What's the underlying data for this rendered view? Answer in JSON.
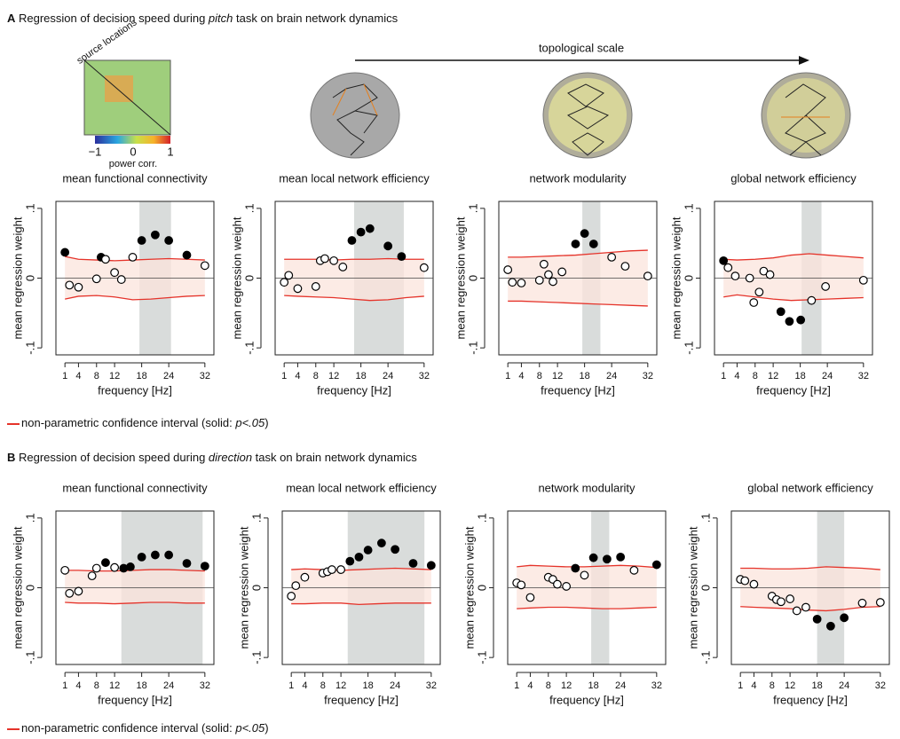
{
  "figure": {
    "panels": [
      {
        "letter": "A",
        "pre": " Regression of decision speed during ",
        "task": "pitch",
        "post": " task on brain network dynamics"
      },
      {
        "letter": "B",
        "pre": " Regression of decision speed during ",
        "task": "direction",
        "post": " task on brain network dynamics"
      }
    ],
    "legend": {
      "pre": "non-parametric confidence interval (solid: ",
      "italic": "p<.05",
      "post": ")"
    },
    "scale_label": "topological scale",
    "matrix_label": "source locations",
    "colorbar_ticks": [
      "−1",
      "0",
      "1"
    ],
    "colorbar_label": "power corr."
  },
  "chart_data": [
    {
      "type": "scatter",
      "title": "mean functional connectivity",
      "xlabel": "frequency [Hz]",
      "ylabel": "mean regression weight",
      "x": [
        1,
        2,
        4,
        8,
        9,
        10,
        12,
        13.5,
        16,
        18,
        21,
        24,
        28,
        32
      ],
      "values": [
        0.037,
        -0.01,
        -0.013,
        -0.001,
        0.03,
        0.027,
        0.008,
        -0.002,
        0.03,
        0.054,
        0.062,
        0.054,
        0.033,
        0.018
      ],
      "significant": [
        true,
        false,
        false,
        false,
        true,
        false,
        false,
        false,
        false,
        true,
        true,
        true,
        true,
        false
      ],
      "ci_x": [
        1,
        4,
        8,
        12,
        16,
        20,
        24,
        28,
        32
      ],
      "ci_upper": [
        0.031,
        0.027,
        0.026,
        0.025,
        0.026,
        0.027,
        0.028,
        0.027,
        0.026
      ],
      "ci_lower": [
        -0.03,
        -0.026,
        -0.025,
        -0.027,
        -0.031,
        -0.03,
        -0.028,
        -0.026,
        -0.025
      ],
      "shade": [
        17.5,
        24.5
      ],
      "ci_color": "#e5332a",
      "ci_fill": "#fbe4dc",
      "shade_color": "#d9dcdb",
      "point_color": "#000000",
      "xlim": [
        -1,
        34
      ],
      "ylim": [
        -0.11,
        0.11
      ],
      "xticks": [
        1,
        4,
        8,
        12,
        18,
        24,
        32
      ],
      "yticks": [
        {
          "value": -0.1,
          "label": "-.1"
        },
        0,
        {
          "value": 0.1,
          "label": ".1"
        }
      ]
    },
    {
      "type": "scatter",
      "title": "mean local network efficiency",
      "xlabel": "frequency [Hz]",
      "ylabel": "mean regression weight",
      "x": [
        1,
        2,
        4,
        8,
        9,
        10,
        12,
        14,
        16,
        18,
        20,
        24,
        27,
        32
      ],
      "values": [
        -0.006,
        0.004,
        -0.015,
        -0.012,
        0.025,
        0.028,
        0.025,
        0.016,
        0.054,
        0.066,
        0.071,
        0.046,
        0.031,
        0.015
      ],
      "significant": [
        false,
        false,
        false,
        false,
        false,
        false,
        false,
        false,
        true,
        true,
        true,
        true,
        true,
        false
      ],
      "ci_x": [
        1,
        4,
        8,
        12,
        16,
        20,
        24,
        28,
        32
      ],
      "ci_upper": [
        0.027,
        0.027,
        0.027,
        0.026,
        0.027,
        0.027,
        0.028,
        0.027,
        0.027
      ],
      "ci_lower": [
        -0.025,
        -0.026,
        -0.027,
        -0.028,
        -0.03,
        -0.032,
        -0.031,
        -0.028,
        -0.026
      ],
      "shade": [
        16.5,
        27.5
      ],
      "ci_color": "#e5332a",
      "ci_fill": "#fbe4dc",
      "shade_color": "#d9dcdb",
      "point_color": "#000000",
      "xlim": [
        -1,
        34
      ],
      "ylim": [
        -0.11,
        0.11
      ],
      "xticks": [
        1,
        4,
        8,
        12,
        18,
        24,
        32
      ],
      "yticks": [
        {
          "value": -0.1,
          "label": "-.1"
        },
        0,
        {
          "value": 0.1,
          "label": ".1"
        }
      ]
    },
    {
      "type": "scatter",
      "title": "network modularity",
      "xlabel": "frequency [Hz]",
      "ylabel": "mean regression weight",
      "x": [
        1,
        2,
        4,
        8,
        9,
        10,
        11,
        13,
        16,
        18,
        20,
        24,
        27,
        32
      ],
      "values": [
        0.012,
        -0.006,
        -0.007,
        -0.003,
        0.02,
        0.005,
        -0.005,
        0.009,
        0.049,
        0.064,
        0.049,
        0.03,
        0.017,
        0.003
      ],
      "significant": [
        false,
        false,
        false,
        false,
        false,
        false,
        false,
        false,
        true,
        true,
        true,
        false,
        false,
        false
      ],
      "ci_x": [
        1,
        4,
        8,
        12,
        16,
        20,
        24,
        28,
        32
      ],
      "ci_upper": [
        0.03,
        0.03,
        0.031,
        0.032,
        0.033,
        0.035,
        0.037,
        0.039,
        0.04
      ],
      "ci_lower": [
        -0.033,
        -0.033,
        -0.034,
        -0.035,
        -0.036,
        -0.037,
        -0.038,
        -0.039,
        -0.04
      ],
      "shade": [
        17.5,
        21.5
      ],
      "ci_color": "#e5332a",
      "ci_fill": "#fbe4dc",
      "shade_color": "#d9dcdb",
      "point_color": "#000000",
      "xlim": [
        -1,
        34
      ],
      "ylim": [
        -0.11,
        0.11
      ],
      "xticks": [
        1,
        4,
        8,
        12,
        18,
        24,
        32
      ],
      "yticks": [
        {
          "value": -0.1,
          "label": "-.1"
        },
        0,
        {
          "value": 0.1,
          "label": ".1"
        }
      ]
    },
    {
      "type": "scatter",
      "title": "global network efficiency",
      "xlabel": "frequency [Hz]",
      "ylabel": "mean regression weight",
      "x": [
        1,
        2,
        3.6,
        6.8,
        7.7,
        8.9,
        9.9,
        11.3,
        13.7,
        15.6,
        18.1,
        20.5,
        23.6,
        32
      ],
      "values": [
        0.025,
        0.015,
        0.003,
        0,
        -0.035,
        -0.02,
        0.01,
        0.005,
        -0.048,
        -0.062,
        -0.06,
        -0.032,
        -0.012,
        -0.003
      ],
      "significant": [
        true,
        false,
        false,
        false,
        false,
        false,
        false,
        false,
        true,
        true,
        true,
        false,
        false,
        false
      ],
      "ci_x": [
        1,
        4,
        8,
        12,
        16,
        20,
        24,
        28,
        32
      ],
      "ci_upper": [
        0.027,
        0.026,
        0.027,
        0.029,
        0.033,
        0.035,
        0.033,
        0.031,
        0.029
      ],
      "ci_lower": [
        -0.027,
        -0.024,
        -0.027,
        -0.03,
        -0.032,
        -0.031,
        -0.03,
        -0.029,
        -0.028
      ],
      "shade": [
        18.3,
        22.7
      ],
      "ci_color": "#e5332a",
      "ci_fill": "#fbe4dc",
      "shade_color": "#d9dcdb",
      "point_color": "#000000",
      "xlim": [
        -1,
        34
      ],
      "ylim": [
        -0.11,
        0.11
      ],
      "xticks": [
        1,
        4,
        8,
        12,
        18,
        24,
        32
      ],
      "yticks": [
        {
          "value": -0.1,
          "label": "-.1"
        },
        0,
        {
          "value": 0.1,
          "label": ".1"
        }
      ]
    },
    {
      "type": "scatter",
      "title": "mean functional connectivity",
      "xlabel": "frequency [Hz]",
      "ylabel": "mean regression weight",
      "x": [
        1,
        2,
        4,
        7,
        8,
        10,
        12,
        14,
        15.5,
        18,
        21,
        24,
        28,
        32
      ],
      "values": [
        0.025,
        -0.008,
        -0.005,
        0.017,
        0.028,
        0.036,
        0.029,
        0.028,
        0.03,
        0.044,
        0.047,
        0.047,
        0.035,
        0.031
      ],
      "significant": [
        false,
        false,
        false,
        false,
        false,
        true,
        false,
        true,
        true,
        true,
        true,
        true,
        true,
        true
      ],
      "ci_x": [
        1,
        4,
        8,
        12,
        16,
        20,
        24,
        28,
        32
      ],
      "ci_upper": [
        0.025,
        0.025,
        0.024,
        0.024,
        0.025,
        0.026,
        0.026,
        0.025,
        0.024
      ],
      "ci_lower": [
        -0.021,
        -0.022,
        -0.022,
        -0.023,
        -0.022,
        -0.021,
        -0.021,
        -0.022,
        -0.022
      ],
      "shade": [
        13.5,
        31.5
      ],
      "ci_color": "#e5332a",
      "ci_fill": "#fbe4dc",
      "shade_color": "#d9dcdb",
      "point_color": "#000000",
      "xlim": [
        -1,
        34
      ],
      "ylim": [
        -0.11,
        0.11
      ],
      "xticks": [
        1,
        4,
        8,
        12,
        18,
        24,
        32
      ],
      "yticks": [
        {
          "value": -0.1,
          "label": "-.1"
        },
        0,
        {
          "value": 0.1,
          "label": ".1"
        }
      ]
    },
    {
      "type": "scatter",
      "title": "mean local network efficiency",
      "xlabel": "frequency [Hz]",
      "ylabel": "mean regression weight",
      "x": [
        1,
        2,
        4,
        8,
        9,
        10,
        12,
        14,
        16,
        18,
        21,
        24,
        28,
        32
      ],
      "values": [
        -0.012,
        0.003,
        0.015,
        0.021,
        0.023,
        0.026,
        0.026,
        0.038,
        0.044,
        0.054,
        0.064,
        0.055,
        0.035,
        0.032
      ],
      "significant": [
        false,
        false,
        false,
        false,
        false,
        false,
        false,
        true,
        true,
        true,
        true,
        true,
        true,
        true
      ],
      "ci_x": [
        1,
        4,
        8,
        12,
        16,
        20,
        24,
        28,
        32
      ],
      "ci_upper": [
        0.026,
        0.027,
        0.026,
        0.025,
        0.026,
        0.027,
        0.028,
        0.027,
        0.026
      ],
      "ci_lower": [
        -0.023,
        -0.023,
        -0.022,
        -0.022,
        -0.024,
        -0.023,
        -0.022,
        -0.022,
        -0.022
      ],
      "shade": [
        13.5,
        30.5
      ],
      "ci_color": "#e5332a",
      "ci_fill": "#fbe4dc",
      "shade_color": "#d9dcdb",
      "point_color": "#000000",
      "xlim": [
        -1,
        34
      ],
      "ylim": [
        -0.11,
        0.11
      ],
      "xticks": [
        1,
        4,
        8,
        12,
        18,
        24,
        32
      ],
      "yticks": [
        {
          "value": -0.1,
          "label": "-.1"
        },
        0,
        {
          "value": 0.1,
          "label": ".1"
        }
      ]
    },
    {
      "type": "scatter",
      "title": "network modularity",
      "xlabel": "frequency [Hz]",
      "ylabel": "mean regression weight",
      "x": [
        1,
        2,
        4,
        8,
        9,
        10,
        12,
        14,
        16,
        18,
        21,
        24,
        27,
        32
      ],
      "values": [
        0.007,
        0.004,
        -0.014,
        0.015,
        0.012,
        0.005,
        0.002,
        0.028,
        0.018,
        0.043,
        0.041,
        0.044,
        0.025,
        0.033
      ],
      "significant": [
        false,
        false,
        false,
        false,
        false,
        false,
        false,
        true,
        false,
        true,
        true,
        true,
        false,
        true
      ],
      "ci_x": [
        1,
        4,
        8,
        12,
        16,
        20,
        24,
        28,
        32
      ],
      "ci_upper": [
        0.03,
        0.032,
        0.031,
        0.03,
        0.03,
        0.031,
        0.032,
        0.031,
        0.029
      ],
      "ci_lower": [
        -0.03,
        -0.029,
        -0.028,
        -0.028,
        -0.029,
        -0.03,
        -0.03,
        -0.029,
        -0.028
      ],
      "shade": [
        17.5,
        21.5
      ],
      "ci_color": "#e5332a",
      "ci_fill": "#fbe4dc",
      "shade_color": "#d9dcdb",
      "point_color": "#000000",
      "xlim": [
        -1,
        34
      ],
      "ylim": [
        -0.11,
        0.11
      ],
      "xticks": [
        1,
        4,
        8,
        12,
        18,
        24,
        32
      ],
      "yticks": [
        {
          "value": -0.1,
          "label": "-.1"
        },
        0,
        {
          "value": 0.1,
          "label": ".1"
        }
      ]
    },
    {
      "type": "scatter",
      "title": "global network efficiency",
      "xlabel": "frequency [Hz]",
      "ylabel": "mean regression weight",
      "x": [
        1,
        2,
        4,
        8,
        9,
        10,
        12,
        13.5,
        15.5,
        18,
        21,
        24,
        28,
        32
      ],
      "values": [
        0.012,
        0.01,
        0.005,
        -0.012,
        -0.017,
        -0.02,
        -0.016,
        -0.033,
        -0.028,
        -0.045,
        -0.055,
        -0.043,
        -0.022,
        -0.021
      ],
      "significant": [
        false,
        false,
        false,
        false,
        false,
        false,
        false,
        false,
        false,
        true,
        true,
        true,
        false,
        false
      ],
      "ci_x": [
        1,
        4,
        8,
        12,
        16,
        20,
        24,
        28,
        32
      ],
      "ci_upper": [
        0.028,
        0.028,
        0.027,
        0.027,
        0.028,
        0.03,
        0.029,
        0.028,
        0.026
      ],
      "ci_lower": [
        -0.027,
        -0.028,
        -0.029,
        -0.03,
        -0.032,
        -0.033,
        -0.031,
        -0.028,
        -0.027
      ],
      "shade": [
        18,
        24
      ],
      "ci_color": "#e5332a",
      "ci_fill": "#fbe4dc",
      "shade_color": "#d9dcdb",
      "point_color": "#000000",
      "xlim": [
        -1,
        34
      ],
      "ylim": [
        -0.11,
        0.11
      ],
      "xticks": [
        1,
        4,
        8,
        12,
        18,
        24,
        32
      ],
      "yticks": [
        {
          "value": -0.1,
          "label": "-.1"
        },
        0,
        {
          "value": 0.1,
          "label": ".1"
        }
      ]
    }
  ]
}
